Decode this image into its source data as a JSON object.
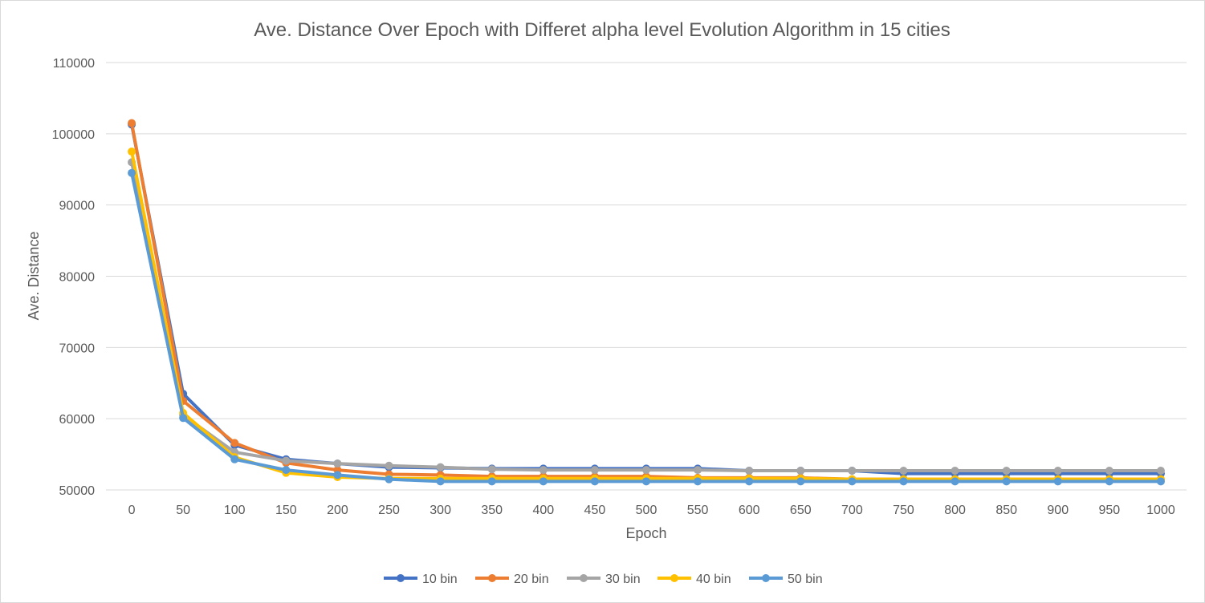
{
  "chart_data": {
    "type": "line",
    "title": "Ave. Distance Over Epoch with Differet alpha level Evolution Algorithm in 15 cities",
    "xlabel": "Epoch",
    "ylabel": "Ave. Distance",
    "ylim": [
      50000,
      110000
    ],
    "yticks": [
      "50000",
      "60000",
      "70000",
      "80000",
      "90000",
      "100000",
      "110000"
    ],
    "grid": true,
    "legend_position": "bottom",
    "categories": [
      "0",
      "50",
      "100",
      "150",
      "200",
      "250",
      "300",
      "350",
      "400",
      "450",
      "500",
      "550",
      "600",
      "650",
      "700",
      "750",
      "800",
      "850",
      "900",
      "950",
      "1000"
    ],
    "series": [
      {
        "name": "10 bin",
        "color": "#4472c4",
        "values": [
          101300,
          63500,
          56300,
          54300,
          53700,
          53200,
          53100,
          53000,
          53000,
          53000,
          53000,
          53000,
          52700,
          52700,
          52700,
          52300,
          52300,
          52300,
          52300,
          52300,
          52300
        ]
      },
      {
        "name": "20 bin",
        "color": "#ed7d31",
        "values": [
          101500,
          62500,
          56600,
          53800,
          52800,
          52200,
          52100,
          51900,
          51900,
          51900,
          51900,
          51700,
          51700,
          51700,
          51500,
          51500,
          51500,
          51500,
          51500,
          51500,
          51500
        ]
      },
      {
        "name": "30 bin",
        "color": "#a5a5a5",
        "values": [
          96000,
          60500,
          55300,
          54100,
          53700,
          53400,
          53200,
          52900,
          52800,
          52800,
          52800,
          52800,
          52700,
          52700,
          52700,
          52700,
          52700,
          52700,
          52700,
          52700,
          52700
        ]
      },
      {
        "name": "40 bin",
        "color": "#ffc000",
        "values": [
          97500,
          60800,
          54600,
          52400,
          51800,
          51600,
          51600,
          51600,
          51600,
          51600,
          51600,
          51600,
          51600,
          51600,
          51500,
          51500,
          51500,
          51500,
          51500,
          51500,
          51500
        ]
      },
      {
        "name": "50 bin",
        "color": "#5b9bd5",
        "values": [
          94500,
          60100,
          54300,
          52800,
          52100,
          51500,
          51200,
          51200,
          51200,
          51200,
          51200,
          51200,
          51200,
          51200,
          51200,
          51200,
          51200,
          51200,
          51200,
          51200,
          51200
        ]
      }
    ]
  }
}
